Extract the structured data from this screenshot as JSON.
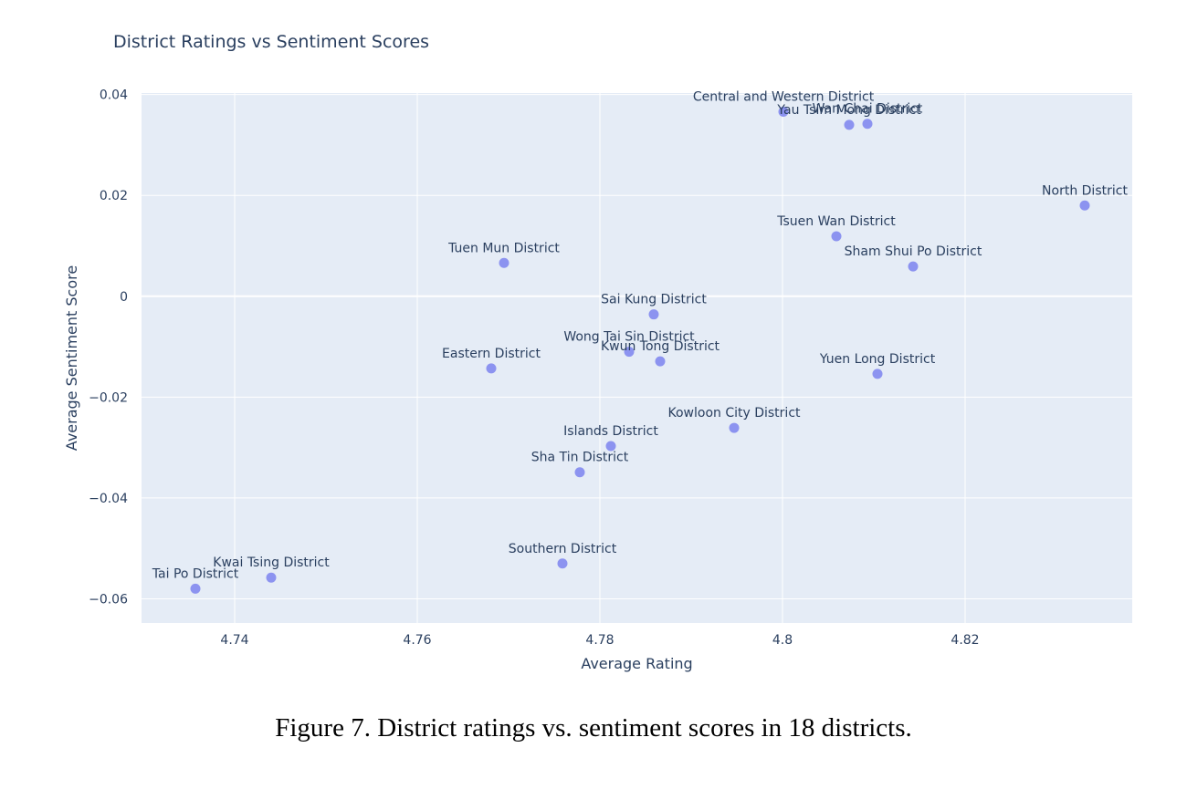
{
  "chart_data": {
    "type": "scatter",
    "title": "District Ratings vs Sentiment Scores",
    "xlabel": "Average Rating",
    "ylabel": "Average Sentiment Score",
    "xlim": [
      4.7298,
      4.8383
    ],
    "ylim": [
      -0.0648,
      0.0403
    ],
    "x_ticks": [
      4.74,
      4.76,
      4.78,
      4.8,
      4.82
    ],
    "x_tick_labels": [
      "4.74",
      "4.76",
      "4.78",
      "4.8",
      "4.82"
    ],
    "y_ticks": [
      0.04,
      0.02,
      0,
      -0.02,
      -0.04,
      -0.06
    ],
    "y_tick_labels": [
      "0.04",
      "0.02",
      "0",
      "−0.02",
      "−0.04",
      "−0.06"
    ],
    "grid": true,
    "colors": {
      "marker": "#8c93f0",
      "plot_bg": "#e5ecf6",
      "grid": "#ffffff",
      "text": "#2a3f5f"
    },
    "points": [
      {
        "label": "Central and Western District",
        "x": 4.8001,
        "y": 0.0366
      },
      {
        "label": "Yau Tsim Mong District",
        "x": 4.8073,
        "y": 0.034
      },
      {
        "label": "Wan Chai District",
        "x": 4.8093,
        "y": 0.0342
      },
      {
        "label": "North District",
        "x": 4.8331,
        "y": 0.018
      },
      {
        "label": "Tsuen Wan District",
        "x": 4.8059,
        "y": 0.0119
      },
      {
        "label": "Sham Shui Po District",
        "x": 4.8143,
        "y": 0.0059
      },
      {
        "label": "Tuen Mun District",
        "x": 4.7695,
        "y": 0.0066
      },
      {
        "label": "Sai Kung District",
        "x": 4.7859,
        "y": -0.0036
      },
      {
        "label": "Wong Tai Sin District",
        "x": 4.7832,
        "y": -0.011
      },
      {
        "label": "Kwun Tong District",
        "x": 4.7866,
        "y": -0.0129
      },
      {
        "label": "Eastern District",
        "x": 4.7681,
        "y": -0.0143
      },
      {
        "label": "Yuen Long District",
        "x": 4.8104,
        "y": -0.0154
      },
      {
        "label": "Kowloon City District",
        "x": 4.7947,
        "y": -0.0261
      },
      {
        "label": "Islands District",
        "x": 4.7812,
        "y": -0.0297
      },
      {
        "label": "Sha Tin District",
        "x": 4.7778,
        "y": -0.0349
      },
      {
        "label": "Southern District",
        "x": 4.7759,
        "y": -0.053
      },
      {
        "label": "Kwai Tsing District",
        "x": 4.744,
        "y": -0.0558
      },
      {
        "label": "Tai Po District",
        "x": 4.7357,
        "y": -0.058
      }
    ]
  },
  "caption": "Figure 7. District ratings vs. sentiment scores in 18 districts."
}
